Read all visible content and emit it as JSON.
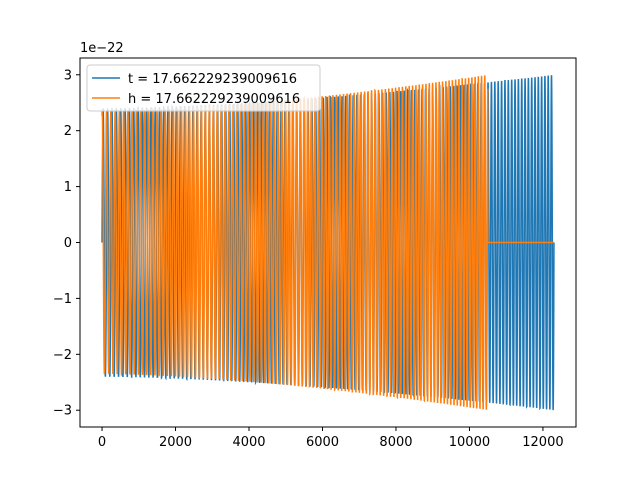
{
  "chart_data": {
    "type": "line",
    "title": "",
    "xlabel": "",
    "ylabel": "",
    "y_offset_label": "1e−22",
    "xlim": [
      -600,
      12900
    ],
    "ylim": [
      -3.3,
      3.3
    ],
    "xticks": [
      0,
      2000,
      4000,
      6000,
      8000,
      10000,
      12000
    ],
    "xtick_labels": [
      "0",
      "2000",
      "4000",
      "6000",
      "8000",
      "10000",
      "12000"
    ],
    "yticks": [
      -3,
      -2,
      -1,
      0,
      1,
      2,
      3
    ],
    "ytick_labels": [
      "−3",
      "−2",
      "−1",
      "0",
      "1",
      "2",
      "3"
    ],
    "grid": false,
    "legend_position": "top-left",
    "series": [
      {
        "name": "t = 17.662229239009616",
        "color": "#1f77b4",
        "kind": "chirp-oscillation",
        "x_start": 0,
        "x_end": 12300,
        "start_amplitude": 2.4,
        "end_amplitude": 3.0,
        "cycles": 120,
        "zero_after": null
      },
      {
        "name": "h = 17.662229239009616",
        "color": "#ff7f0e",
        "kind": "chirp-oscillation",
        "x_start": 0,
        "x_end": 12300,
        "start_amplitude": 2.35,
        "end_amplitude": 3.0,
        "cycles": 105,
        "zero_after": 10500
      }
    ]
  }
}
